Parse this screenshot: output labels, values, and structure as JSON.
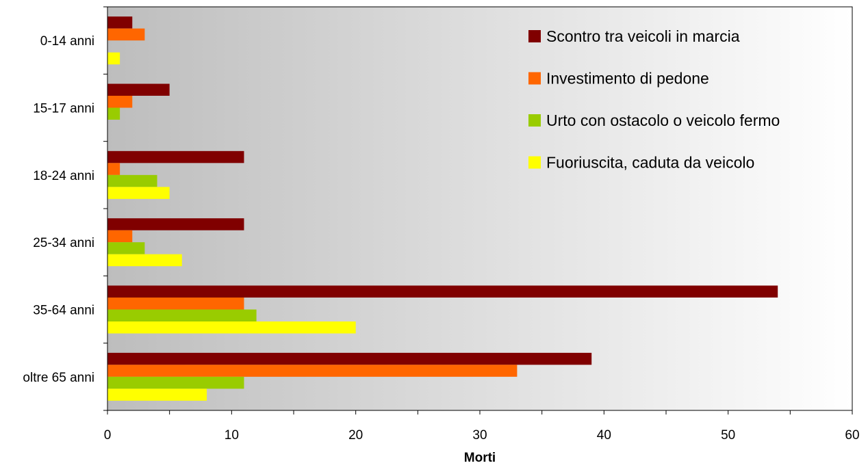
{
  "chart_data": {
    "type": "bar",
    "orientation": "horizontal",
    "title": "",
    "xlabel": "Morti",
    "ylabel": "",
    "xlim": [
      0,
      60
    ],
    "xticks": [
      "0",
      "10",
      "20",
      "30",
      "40",
      "50",
      "60"
    ],
    "grid": false,
    "legend_position": "top-right",
    "background": "gradient grey to white",
    "categories": [
      "0-14 anni",
      "15-17 anni",
      "18-24 anni",
      "25-34 anni",
      "35-64 anni",
      "oltre 65 anni"
    ],
    "series": [
      {
        "name": "Scontro tra veicoli in marcia",
        "color": "#800000",
        "values": [
          2,
          5,
          11,
          11,
          54,
          39
        ]
      },
      {
        "name": "Investimento di pedone",
        "color": "#FF6600",
        "values": [
          3,
          2,
          1,
          2,
          11,
          33
        ]
      },
      {
        "name": "Urto con ostacolo o veicolo fermo",
        "color": "#99CC00",
        "values": [
          0,
          1,
          4,
          3,
          12,
          11
        ]
      },
      {
        "name": "Fuoriuscita, caduta da veicolo",
        "color": "#FFFF00",
        "values": [
          1,
          0,
          5,
          6,
          20,
          8
        ]
      }
    ]
  }
}
